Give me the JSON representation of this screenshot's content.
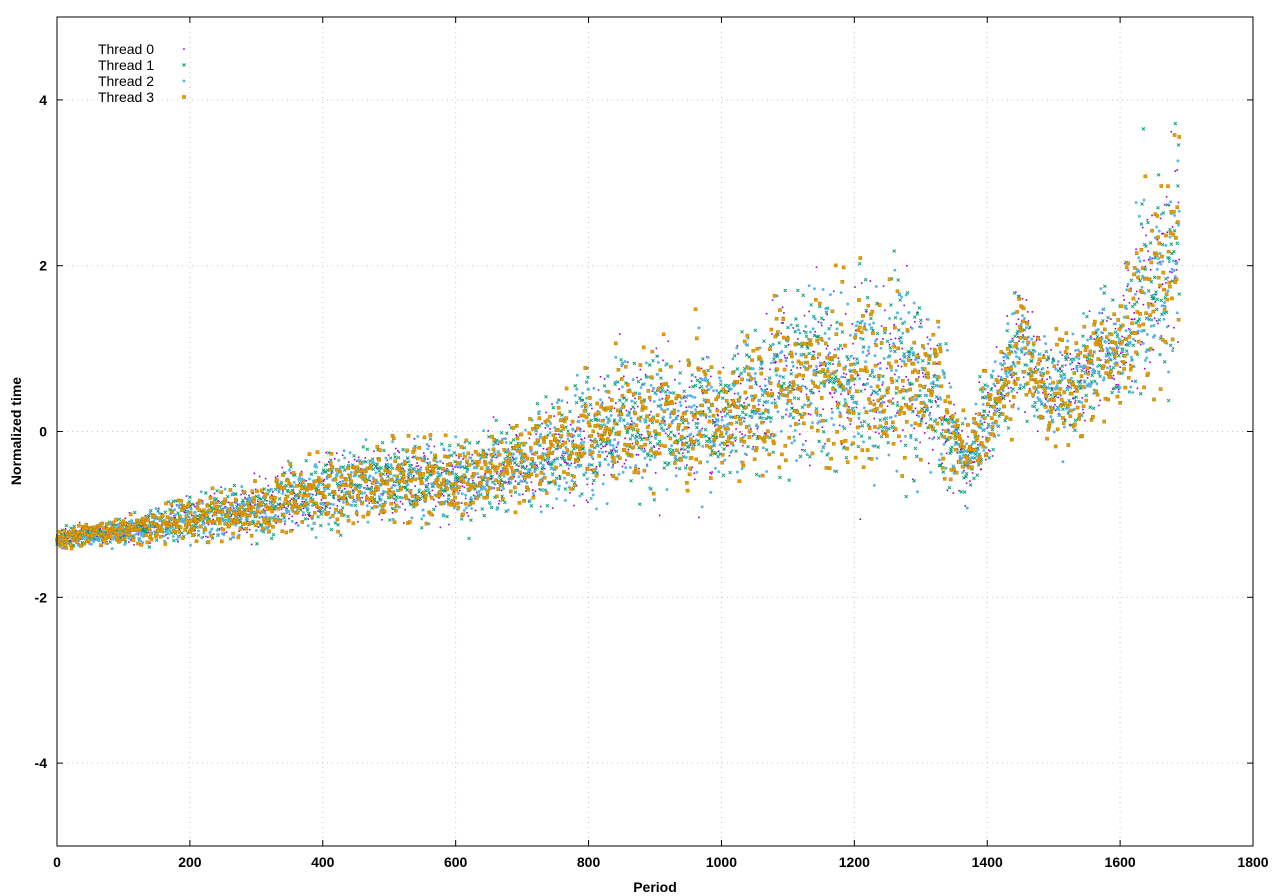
{
  "chart_data": {
    "type": "scatter",
    "xlabel": "Period",
    "ylabel": "Normalized time",
    "xlim": [
      0,
      1800
    ],
    "ylim": [
      -5,
      5
    ],
    "x_ticks": [
      0,
      200,
      400,
      600,
      800,
      1000,
      1200,
      1400,
      1600,
      1800
    ],
    "y_ticks": [
      -4,
      -2,
      0,
      2,
      4
    ],
    "grid": true,
    "legend_position": "top-left",
    "n_points_per_series": 1690,
    "series": [
      {
        "name": "Thread 0",
        "color": "#9400d3",
        "marker": "dot"
      },
      {
        "name": "Thread 1",
        "color": "#009e73",
        "marker": "cross"
      },
      {
        "name": "Thread 2",
        "color": "#56b4e9",
        "marker": "star"
      },
      {
        "name": "Thread 3",
        "color": "#e69f00",
        "marker": "square"
      }
    ],
    "trend": [
      {
        "x": 0,
        "mean": -1.3,
        "spread": 0.1
      },
      {
        "x": 100,
        "mean": -1.2,
        "spread": 0.15
      },
      {
        "x": 200,
        "mean": -1.05,
        "spread": 0.25
      },
      {
        "x": 300,
        "mean": -0.95,
        "spread": 0.3
      },
      {
        "x": 400,
        "mean": -0.7,
        "spread": 0.4
      },
      {
        "x": 500,
        "mean": -0.6,
        "spread": 0.45
      },
      {
        "x": 600,
        "mean": -0.6,
        "spread": 0.45
      },
      {
        "x": 700,
        "mean": -0.4,
        "spread": 0.45
      },
      {
        "x": 800,
        "mean": -0.1,
        "spread": 0.65
      },
      {
        "x": 900,
        "mean": 0.1,
        "spread": 0.75
      },
      {
        "x": 1000,
        "mean": 0.1,
        "spread": 0.6
      },
      {
        "x": 1100,
        "mean": 0.6,
        "spread": 0.85
      },
      {
        "x": 1200,
        "mean": 0.6,
        "spread": 1.0
      },
      {
        "x": 1300,
        "mean": 0.6,
        "spread": 0.9
      },
      {
        "x": 1370,
        "mean": -0.4,
        "spread": 0.35
      },
      {
        "x": 1450,
        "mean": 1.0,
        "spread": 0.6
      },
      {
        "x": 1500,
        "mean": 0.4,
        "spread": 0.5
      },
      {
        "x": 1600,
        "mean": 1.0,
        "spread": 0.6
      },
      {
        "x": 1650,
        "mean": 1.8,
        "spread": 1.2
      },
      {
        "x": 1690,
        "mean": 2.0,
        "spread": 1.1
      }
    ]
  }
}
